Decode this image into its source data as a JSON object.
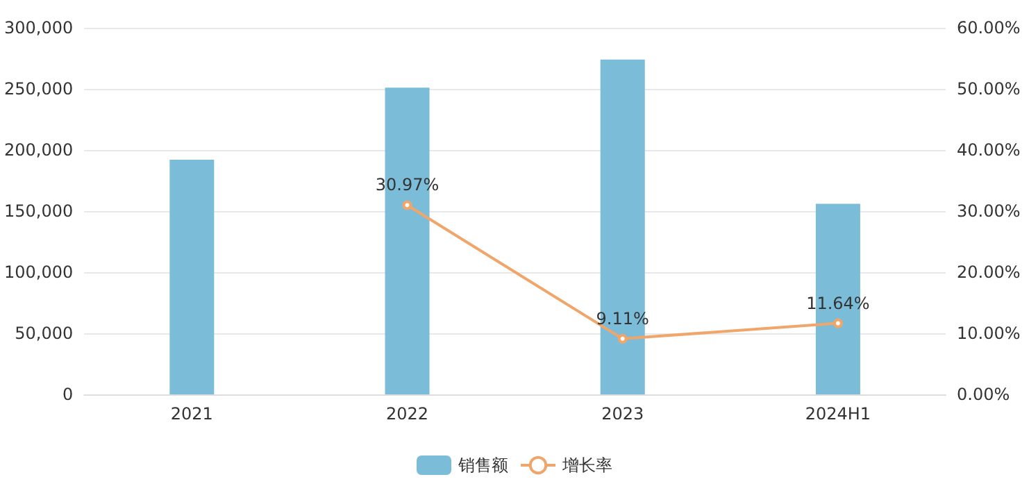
{
  "chart_data": {
    "type": "bar",
    "categories": [
      "2021",
      "2022",
      "2023",
      "2024H1"
    ],
    "series": [
      {
        "name": "销售额",
        "color": "#7bbcd9",
        "values": [
          192000,
          251000,
          274000,
          156000
        ]
      },
      {
        "name": "增长率",
        "type": "line",
        "axis": "y2",
        "color": "#f0a66a",
        "values": [
          null,
          30.97,
          9.11,
          11.64
        ],
        "value_labels": [
          null,
          "30.97%",
          "9.11%",
          "11.64%"
        ]
      }
    ],
    "ylim": [
      0,
      300000
    ],
    "yticks": [
      {
        "value": 0,
        "label": "0"
      },
      {
        "value": 50000,
        "label": "50,000"
      },
      {
        "value": 100000,
        "label": "100,000"
      },
      {
        "value": 150000,
        "label": "150,000"
      },
      {
        "value": 200000,
        "label": "200,000"
      },
      {
        "value": 250000,
        "label": "250,000"
      },
      {
        "value": 300000,
        "label": "300,000"
      }
    ],
    "y2lim": [
      0,
      60
    ],
    "y2ticks": [
      {
        "value": 0,
        "label": "0.00%"
      },
      {
        "value": 10,
        "label": "10.00%"
      },
      {
        "value": 20,
        "label": "20.00%"
      },
      {
        "value": 30,
        "label": "30.00%"
      },
      {
        "value": 40,
        "label": "40.00%"
      },
      {
        "value": 50,
        "label": "50.00%"
      },
      {
        "value": 60,
        "label": "60.00%"
      }
    ],
    "grid": "y",
    "legend": "bottom",
    "marker": "circle",
    "line_style": "solid"
  }
}
